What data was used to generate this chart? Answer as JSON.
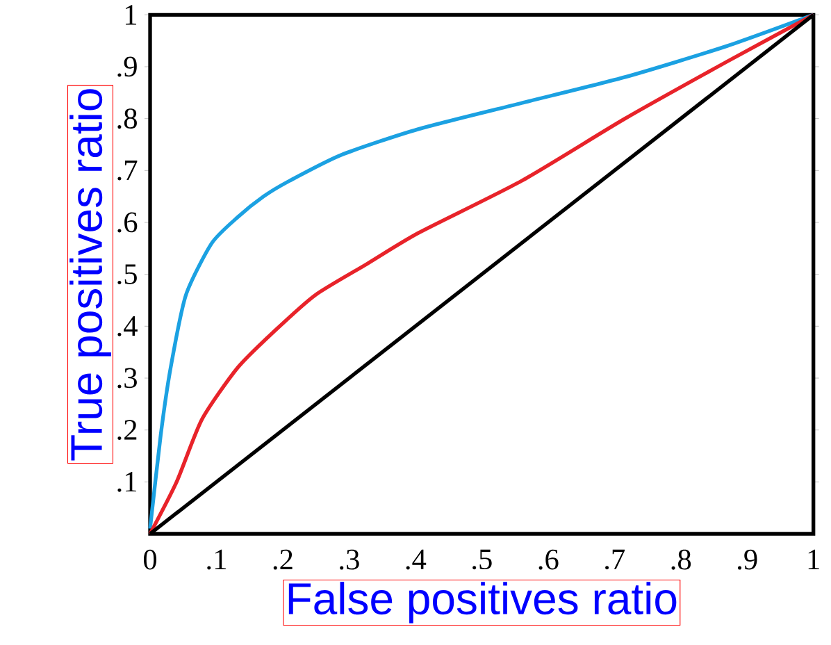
{
  "chart_data": {
    "type": "line",
    "xlabel": "False positives ratio",
    "ylabel": "True positives ratio",
    "xlim": [
      0,
      1
    ],
    "ylim": [
      0,
      1
    ],
    "xticks": [
      0,
      {
        "value": 0.1,
        "label": ".1"
      },
      {
        "value": 0.2,
        "label": ".2"
      },
      {
        "value": 0.3,
        "label": ".3"
      },
      {
        "value": 0.4,
        "label": ".4"
      },
      {
        "value": 0.5,
        "label": ".5"
      },
      {
        "value": 0.6,
        "label": ".6"
      },
      {
        "value": 0.7,
        "label": ".7"
      },
      {
        "value": 0.8,
        "label": ".8"
      },
      {
        "value": 0.9,
        "label": ".9"
      },
      1
    ],
    "yticks": [
      {
        "value": 0.1,
        "label": ".1"
      },
      {
        "value": 0.2,
        "label": ".2"
      },
      {
        "value": 0.3,
        "label": ".3"
      },
      {
        "value": 0.4,
        "label": ".4"
      },
      {
        "value": 0.5,
        "label": ".5"
      },
      {
        "value": 0.6,
        "label": ".6"
      },
      {
        "value": 0.7,
        "label": ".7"
      },
      {
        "value": 0.8,
        "label": ".8"
      },
      {
        "value": 0.9,
        "label": ".9"
      },
      1
    ],
    "series": [
      {
        "color": "#1ba1e2",
        "x": [
          0,
          0.016,
          0.031,
          0.054,
          0.093,
          0.132,
          0.171,
          0.21,
          0.288,
          0.405,
          0.56,
          0.716,
          0.87,
          1
        ],
        "values": [
          0.01,
          0.19,
          0.32,
          0.46,
          0.56,
          0.61,
          0.65,
          0.68,
          0.73,
          0.78,
          0.83,
          0.88,
          0.94,
          1
        ]
      },
      {
        "color": "#e8232a",
        "x": [
          0,
          0.04,
          0.078,
          0.132,
          0.187,
          0.249,
          0.327,
          0.405,
          0.56,
          0.716,
          0.87,
          1
        ],
        "values": [
          0,
          0.1,
          0.22,
          0.32,
          0.39,
          0.46,
          0.52,
          0.58,
          0.68,
          0.8,
          0.91,
          1
        ]
      },
      {
        "color": "#000000",
        "x": [
          0,
          1
        ],
        "values": [
          0,
          1
        ]
      }
    ]
  }
}
